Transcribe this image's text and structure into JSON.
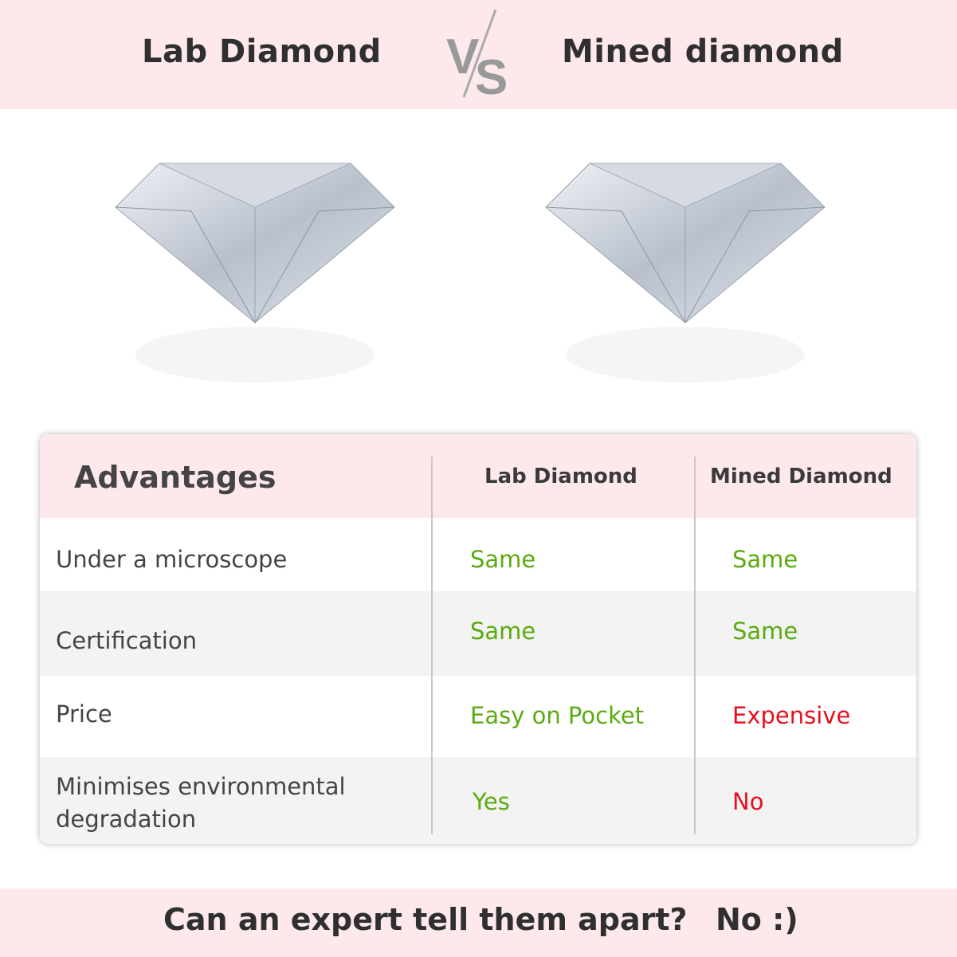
{
  "header": {
    "left_title": "Lab Diamond",
    "vs": "VS",
    "right_title": "Mined diamond"
  },
  "table": {
    "headers": [
      "Advantages",
      "Lab Diamond",
      "Mined Diamond"
    ],
    "rows": [
      {
        "label": "Under a microscope",
        "lab": "Same",
        "mined": "Same"
      },
      {
        "label": "Certification",
        "lab": "Same",
        "mined": "Same"
      },
      {
        "label": "Price",
        "lab": "Easy on Pocket",
        "mined": "Expensive"
      },
      {
        "label": "Minimises environmental degradation",
        "lab": "Yes",
        "mined": "No"
      }
    ]
  },
  "footer": {
    "question": "Can an expert tell them apart?",
    "answer": "No :)"
  },
  "colors": {
    "positive": "#5aab10",
    "negative": "#e8101e",
    "band": "#fde9ec"
  }
}
